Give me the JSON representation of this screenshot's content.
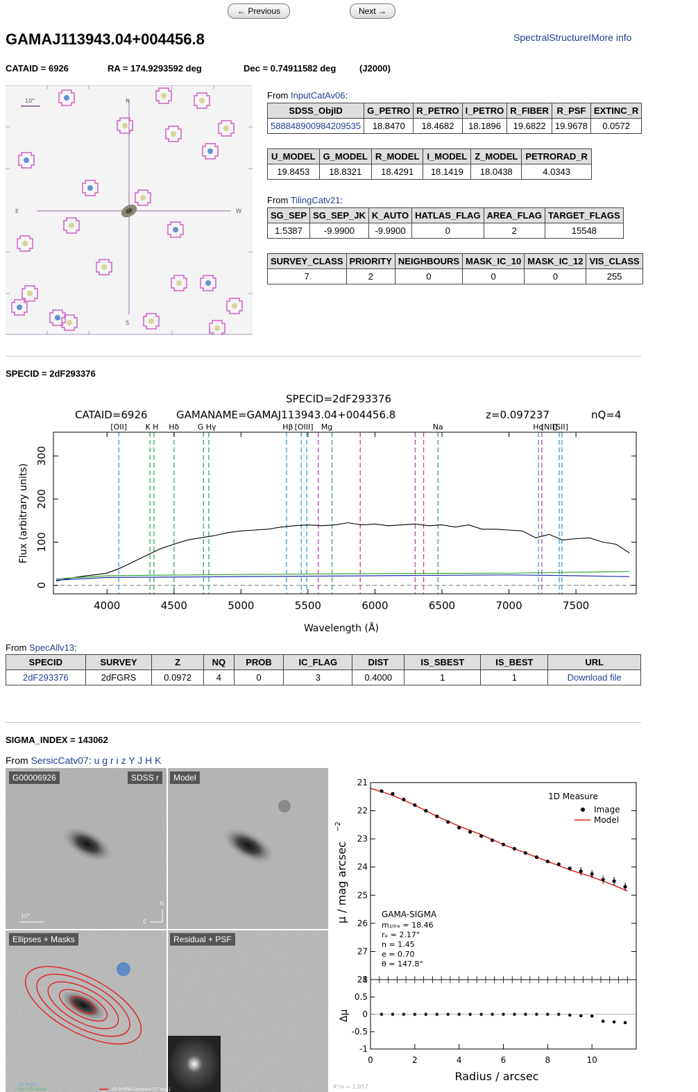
{
  "nav": {
    "prev_label": "← Previous",
    "next_label": "Next →"
  },
  "header": {
    "title": "GAMAJ113943.04+004456.8",
    "links": "SpectralStructureIMore info",
    "cataid": "CATAID = 6926",
    "ra": "RA = 174.9293592 deg",
    "dec": "Dec = 0.74911582 deg",
    "epoch": "(J2000)"
  },
  "image_labels": {
    "scale": "10\"",
    "n": "N",
    "s": "S",
    "e": "E",
    "w": "W"
  },
  "input_cat": {
    "from_text": "From",
    "link": "InputCatAv06",
    "colon": ":",
    "table1": {
      "headers": [
        "SDSS_ObjID",
        "G_PETRO",
        "R_PETRO",
        "I_PETRO",
        "R_FIBER",
        "R_PSF",
        "EXTINC_R"
      ],
      "row": [
        "588848900984209535",
        "18.8470",
        "18.4682",
        "18.1896",
        "19.6822",
        "19.9678",
        "0.0572"
      ]
    },
    "table2": {
      "headers": [
        "U_MODEL",
        "G_MODEL",
        "R_MODEL",
        "I_MODEL",
        "Z_MODEL",
        "PETRORAD_R"
      ],
      "row": [
        "19.8453",
        "18.8321",
        "18.4291",
        "18.1419",
        "18.0438",
        "4.0343"
      ]
    }
  },
  "tiling_cat": {
    "from_text": "From",
    "link": "TilingCatv21",
    "colon": ":",
    "table1": {
      "headers": [
        "SG_SEP",
        "SG_SEP_JK",
        "K_AUTO",
        "HATLAS_FLAG",
        "AREA_FLAG",
        "TARGET_FLAGS"
      ],
      "row": [
        "1.5387",
        "-9.9900",
        "-9.9900",
        "0",
        "2",
        "15548"
      ]
    },
    "table2": {
      "headers": [
        "SURVEY_CLASS",
        "PRIORITY",
        "NEIGHBOURS",
        "MASK_IC_10",
        "MASK_IC_12",
        "VIS_CLASS"
      ],
      "row": [
        "7",
        "2",
        "0",
        "0",
        "0",
        "255"
      ]
    }
  },
  "spec_section": {
    "heading": "SPECID = 2dF293376",
    "plot": {
      "title": "SPECID=2dF293376",
      "cataid": "CATAID=6926",
      "gamaname": "GAMANAME=GAMAJ113943.04+004456.8",
      "z": "z=0.097237",
      "nq": "nQ=4",
      "xlabel": "Wavelength (Å)",
      "ylabel": "Flux (arbitrary units)",
      "line_labels": [
        "[OII]",
        "K H",
        "Hδ",
        "G Hγ",
        "Hβ",
        "[OIII]",
        "Mg",
        "Na",
        "Hα",
        "[NII]",
        "[SII]"
      ]
    },
    "from_text": "From",
    "link": "SpecAllv13",
    "colon": ":",
    "table": {
      "headers": [
        "SPECID",
        "SURVEY",
        "Z",
        "NQ",
        "PROB",
        "IC_FLAG",
        "DIST",
        "IS_SBEST",
        "IS_BEST",
        "URL"
      ],
      "row": [
        "2dF293376",
        "2dFGRS",
        "0.0972",
        "4",
        "0",
        "3",
        "0.4000",
        "1",
        "1",
        "Download file"
      ]
    }
  },
  "sigma_section": {
    "heading": "SIGMA_INDEX = 143062",
    "from_text": "From",
    "link": "SersicCatv07",
    "colon": ":",
    "bands": [
      "u",
      "g",
      "r",
      "i",
      "z",
      "Y",
      "J",
      "H",
      "K"
    ],
    "panels": {
      "id": "G00006926",
      "band": "SDSS r",
      "model": "Model",
      "ellipses": "Ellipses + Masks",
      "residual": "Residual + PSF",
      "scale": "10\"",
      "legend_1d": "1D Mask",
      "legend_2d": "1D / 2D Mask",
      "contours": "1D Profile Contours (2\" sep.)"
    },
    "profile": {
      "legend_title": "1D Measure",
      "legend_image": "Image",
      "legend_model": "Model",
      "ylabel": "μ / mag arcsec",
      "ylabel_sup": "−2",
      "xlabel": "Radius / arcsec",
      "resid_label": "Δμ",
      "chi": "X²/ν = 1.057",
      "info_title": "GAMA-SIGMA",
      "info": [
        "m₁₀ᵣₑ = 18.46",
        "rₑ = 2.17\"",
        "n = 1.45",
        "e = 0.70",
        "θ = 147.8°"
      ]
    }
  },
  "colors": {
    "link": "#1f3f8f",
    "header_bg": "#dedede",
    "spec_black": "#000000",
    "spec_blue": "#1c2fa8",
    "spec_green": "#3aa53a",
    "cyan_line": "#3a9ad9",
    "green_line": "#3aa65a",
    "magenta_line": "#c040a0",
    "model_red": "#e02020"
  },
  "chart_data": [
    {
      "type": "line",
      "title": "SPECID=2dF293376",
      "xlabel": "Wavelength (Å)",
      "ylabel": "Flux (arbitrary units)",
      "xlim": [
        3600,
        7950
      ],
      "ylim": [
        -20,
        355
      ],
      "xticks": [
        4000,
        4500,
        5000,
        5500,
        6000,
        6500,
        7000,
        7500
      ],
      "yticks": [
        0,
        100,
        200,
        300
      ],
      "emission_lines_cyan": [
        4088,
        5340,
        5450,
        5490,
        7220,
        7375,
        7395
      ],
      "absorption_lines_green": [
        4320,
        4350,
        4500,
        4720,
        4760,
        5680,
        6470
      ],
      "sky_lines_magenta": [
        5577,
        5890,
        6300,
        6363,
        7245
      ],
      "series": [
        {
          "name": "",
          "x": [
            3620,
            3700,
            3800,
            3900,
            4000,
            4100,
            4200,
            4300,
            4400,
            4500,
            4600,
            4700,
            4800,
            4900,
            5000,
            5100,
            5200,
            5300,
            5400,
            5500,
            5600,
            5700,
            5800,
            5900,
            6000,
            6100,
            6200,
            6300,
            6400,
            6500,
            6600,
            6700,
            6800,
            6900,
            7000,
            7100,
            7200,
            7300,
            7400,
            7500,
            7600,
            7700,
            7800,
            7900
          ],
          "y": [
            10,
            15,
            20,
            24,
            28,
            40,
            55,
            70,
            85,
            95,
            105,
            110,
            115,
            122,
            126,
            128,
            130,
            135,
            138,
            140,
            138,
            140,
            145,
            140,
            142,
            138,
            140,
            142,
            138,
            140,
            135,
            140,
            130,
            130,
            128,
            126,
            110,
            118,
            105,
            108,
            110,
            100,
            95,
            75
          ]
        },
        {
          "name": "",
          "x": [
            3620,
            4000,
            5000,
            6000,
            7000,
            7500,
            7900
          ],
          "y": [
            12,
            18,
            20,
            22,
            24,
            22,
            20
          ]
        },
        {
          "name": "",
          "x": [
            3620,
            4000,
            5000,
            6000,
            7000,
            7500,
            7900
          ],
          "y": [
            15,
            22,
            25,
            27,
            28,
            30,
            32
          ]
        }
      ]
    },
    {
      "type": "scatter",
      "xlabel": "Radius / arcsec",
      "ylabel": "μ / mag arcsec−2",
      "xlim": [
        0,
        12
      ],
      "ylim": [
        28,
        21
      ],
      "xticks": [
        0,
        2,
        4,
        6,
        8,
        10
      ],
      "yticks": [
        21,
        22,
        23,
        24,
        25,
        26,
        27,
        28
      ],
      "series": [
        {
          "name": "Image",
          "x": [
            0.5,
            1.0,
            1.5,
            2.0,
            2.5,
            3.0,
            3.5,
            4.0,
            4.5,
            5.0,
            5.5,
            6.0,
            6.5,
            7.0,
            7.5,
            8.0,
            8.5,
            9.0,
            9.5,
            10.0,
            10.5,
            11.0,
            11.5
          ],
          "y": [
            21.3,
            21.4,
            21.6,
            21.8,
            22.0,
            22.2,
            22.4,
            22.6,
            22.75,
            22.9,
            23.05,
            23.2,
            23.35,
            23.5,
            23.65,
            23.8,
            23.9,
            24.05,
            24.15,
            24.25,
            24.45,
            24.5,
            24.7
          ]
        },
        {
          "name": "Model",
          "x": [
            0,
            1,
            2,
            3,
            4,
            5,
            6,
            7,
            8,
            9,
            10,
            11,
            11.6
          ],
          "y": [
            21.2,
            21.45,
            21.8,
            22.2,
            22.55,
            22.85,
            23.2,
            23.5,
            23.8,
            24.1,
            24.35,
            24.65,
            24.85
          ]
        }
      ]
    },
    {
      "type": "scatter",
      "xlabel": "Radius / arcsec",
      "ylabel": "Δμ",
      "xlim": [
        0,
        12
      ],
      "ylim": [
        -1,
        1
      ],
      "yticks": [
        1,
        0.5,
        0,
        -0.5,
        -1
      ],
      "series": [
        {
          "name": "",
          "x": [
            0.5,
            1.0,
            1.5,
            2.0,
            2.5,
            3.0,
            3.5,
            4.0,
            4.5,
            5.0,
            5.5,
            6.0,
            6.5,
            7.0,
            7.5,
            8.0,
            8.5,
            9.0,
            9.5,
            10.0,
            10.5,
            11.0,
            11.5
          ],
          "y": [
            0,
            0,
            0,
            0,
            0,
            0,
            0,
            0,
            0,
            0,
            0,
            0,
            0,
            0,
            0,
            0,
            0,
            -0.02,
            -0.04,
            -0.05,
            -0.2,
            -0.22,
            -0.24
          ]
        }
      ]
    }
  ]
}
